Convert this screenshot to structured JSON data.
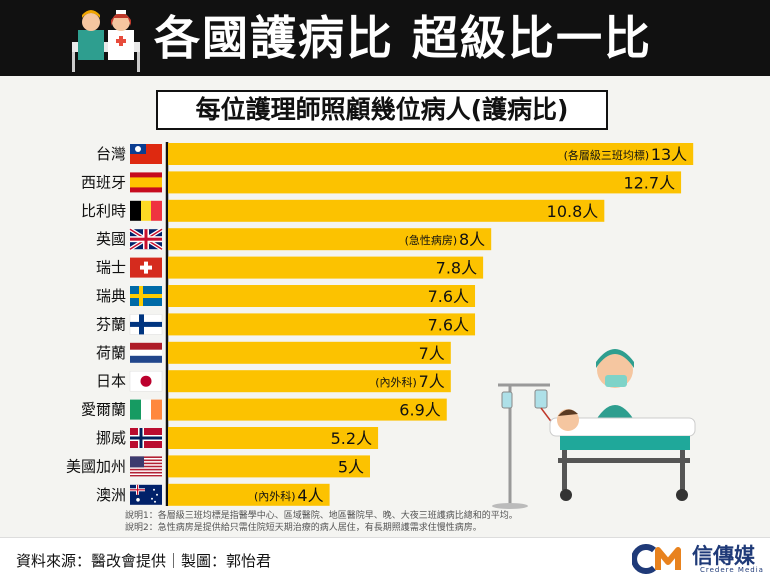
{
  "header": {
    "title": "各國護病比 超級比一比"
  },
  "colors": {
    "bar": "#fcc200",
    "header_bg": "#111111"
  },
  "chart_data": {
    "type": "bar",
    "orientation": "horizontal",
    "title": "每位護理師照顧幾位病人(護病比)",
    "categories": [
      "台灣",
      "西班牙",
      "比利時",
      "英國",
      "瑞士",
      "瑞典",
      "芬蘭",
      "荷蘭",
      "日本",
      "愛爾蘭",
      "挪威",
      "美國加州",
      "澳洲"
    ],
    "values": [
      13,
      12.7,
      10.8,
      8,
      7.8,
      7.6,
      7.6,
      7,
      7,
      6.9,
      5.2,
      5,
      4
    ],
    "value_labels": [
      "13人",
      "12.7人",
      "10.8人",
      "8人",
      "7.8人",
      "7.6人",
      "7.6人",
      "7人",
      "7人",
      "6.9人",
      "5.2人",
      "5人",
      "4人"
    ],
    "annotations": [
      "(各層級三班均標)",
      "",
      "",
      "(急性病房)",
      "",
      "",
      "",
      "",
      "(內外科)",
      "",
      "",
      "",
      "(內外科)"
    ],
    "flag_icons": [
      "flag-taiwan-icon",
      "flag-spain-icon",
      "flag-belgium-icon",
      "flag-uk-icon",
      "flag-switzerland-icon",
      "flag-sweden-icon",
      "flag-finland-icon",
      "flag-netherlands-icon",
      "flag-japan-icon",
      "flag-ireland-icon",
      "flag-norway-icon",
      "flag-usa-icon",
      "flag-australia-icon"
    ],
    "xlim": [
      0,
      13.5
    ]
  },
  "notes": {
    "note1": "說明1：各層級三班均標是指醫學中心、區域醫院、地區醫院早、晚、大夜三班護病比總和的平均。",
    "note2": "說明2：急性病房是提供給只需住院短天期治療的病人居住，有長期照護需求住慢性病房。"
  },
  "footer": {
    "source": "資料來源：醫改會提供｜製圖：郭怡君",
    "logo": "信傳媒",
    "logo_sub": "Credere Media"
  }
}
